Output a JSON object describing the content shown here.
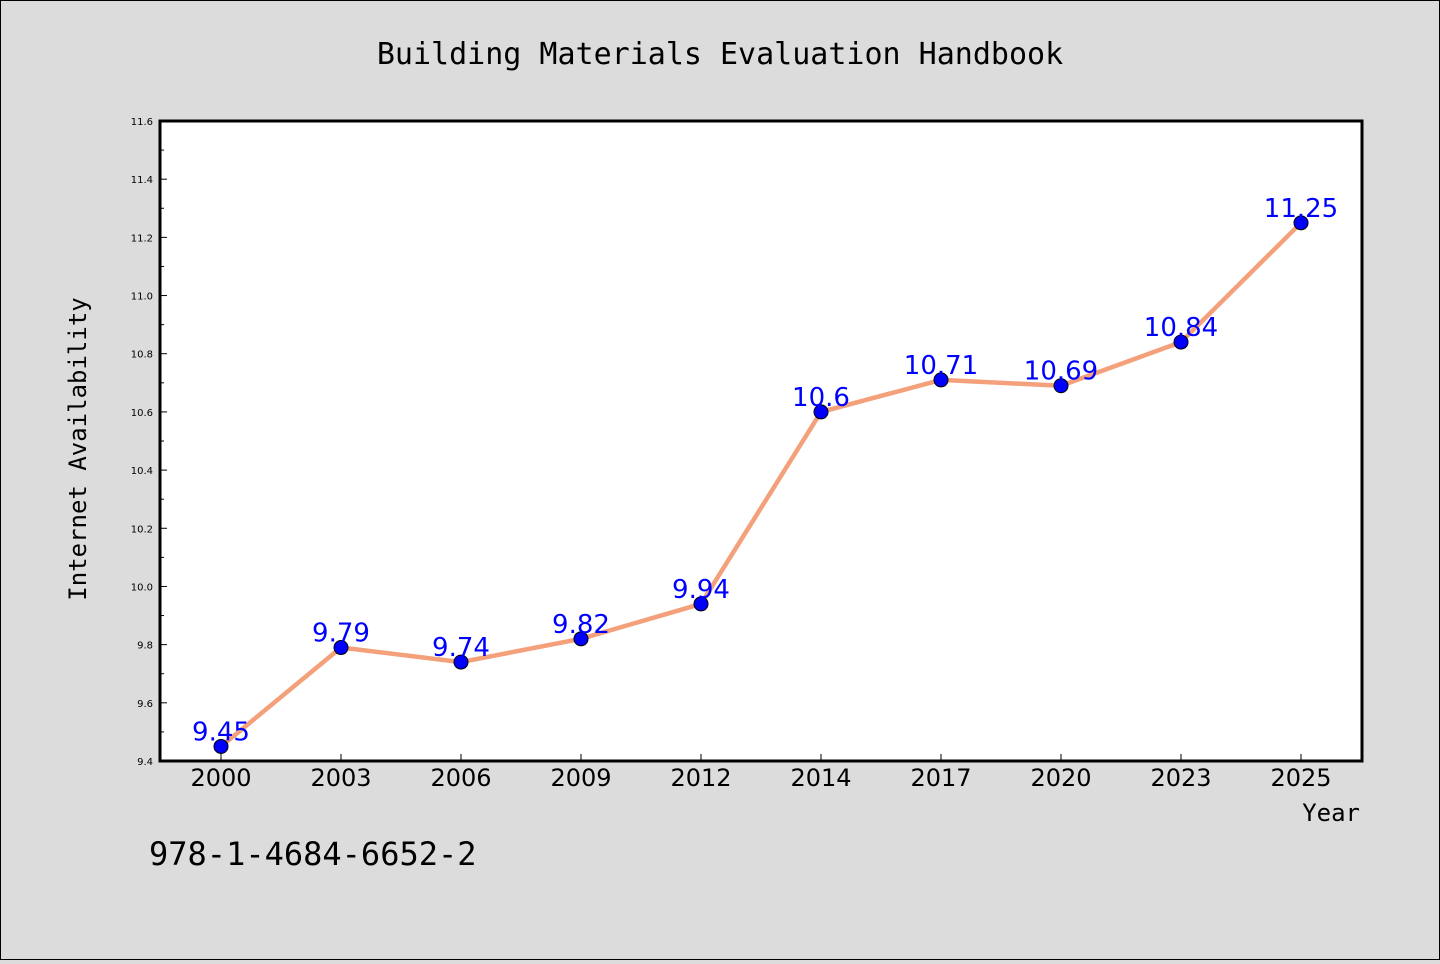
{
  "page": {
    "background": "#dcdcdc",
    "isbn": "978-1-4684-6652-2"
  },
  "chart_data": {
    "type": "line",
    "title": "Building Materials Evaluation Handbook",
    "xlabel": "Year",
    "ylabel": "Internet Availability",
    "categories": [
      "2000",
      "2003",
      "2006",
      "2009",
      "2012",
      "2014",
      "2017",
      "2020",
      "2023",
      "2025"
    ],
    "series": [
      {
        "values": [
          9.45,
          9.79,
          9.74,
          9.82,
          9.94,
          10.6,
          10.71,
          10.69,
          10.84,
          11.25
        ],
        "value_labels": [
          "9.45",
          "9.79",
          "9.74",
          "9.82",
          "9.94",
          "10.6",
          "10.71",
          "10.69",
          "10.84",
          "11.25"
        ],
        "line_color": "#f4a07a",
        "marker_color": "#0000ff"
      }
    ],
    "ylim": [
      9.4,
      11.6
    ],
    "yticks": [
      "9.4",
      "9.6",
      "9.8",
      "10.0",
      "10.2",
      "10.4",
      "10.6",
      "10.8",
      "11.0",
      "11.2",
      "11.4",
      "11.6"
    ],
    "grid": false,
    "legend": "none",
    "label_color": "#0000ff",
    "plot_background": "#ffffff"
  }
}
